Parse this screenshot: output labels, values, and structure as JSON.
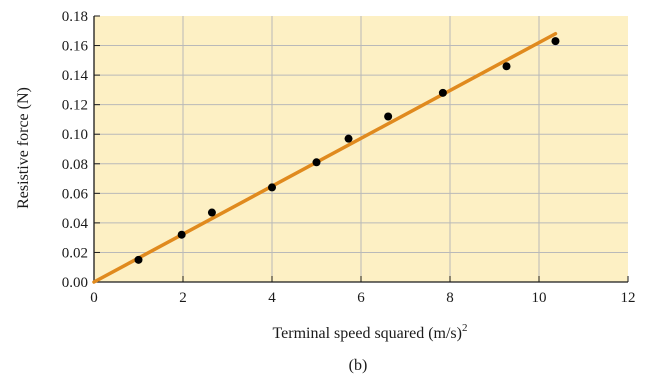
{
  "chart_data": {
    "type": "scatter",
    "xlabel": "Terminal speed squared (m/s)",
    "xlabel_superscript": "2",
    "ylabel": "Resistive force (N)",
    "caption": "(b)",
    "xlim": [
      0,
      12
    ],
    "ylim": [
      0,
      0.18
    ],
    "x_ticks": [
      "0",
      "2",
      "4",
      "6",
      "8",
      "10",
      "12"
    ],
    "y_ticks": [
      "0.00",
      "0.02",
      "0.04",
      "0.06",
      "0.08",
      "0.10",
      "0.12",
      "0.14",
      "0.16",
      "0.18"
    ],
    "grid": true,
    "points": [
      {
        "x": 1.0,
        "y": 0.015
      },
      {
        "x": 1.97,
        "y": 0.032
      },
      {
        "x": 2.65,
        "y": 0.047
      },
      {
        "x": 4.0,
        "y": 0.064
      },
      {
        "x": 5.0,
        "y": 0.081
      },
      {
        "x": 5.72,
        "y": 0.097
      },
      {
        "x": 6.61,
        "y": 0.112
      },
      {
        "x": 7.84,
        "y": 0.128
      },
      {
        "x": 9.27,
        "y": 0.146
      },
      {
        "x": 10.37,
        "y": 0.163
      }
    ],
    "fit_line": {
      "x": [
        0,
        10.37
      ],
      "y": [
        0,
        0.168
      ]
    },
    "colors": {
      "plot_background": "#fdf0c4",
      "grid": "#b9b9b9",
      "fit_line": "#e08a1e",
      "points": "#000000",
      "axis": "#1a1a1a"
    }
  }
}
